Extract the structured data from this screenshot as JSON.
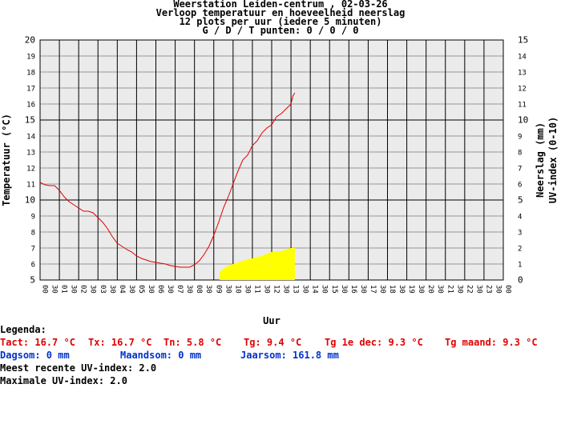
{
  "title_lines": [
    "Weerstation Leiden-centrum , 02-03-26",
    "Verloop temperatuur en hoeveelheid neerslag",
    "12 plots per uur (iedere 5 minuten)",
    "G / D / T punten: 0 / 0 / 0"
  ],
  "legend": {
    "heading": "Legenda:",
    "red_items": [
      "Tact: 16.7 °C",
      "Tx: 16.7 °C",
      "Tn: 5.8 °C",
      "Tg: 9.4 °C",
      "Tg 1e dec: 9.3 °C",
      "Tg maand: 9.3 °C"
    ],
    "blue_items": [
      "Dagsom: 0 mm",
      "Maandsom: 0 mm",
      "Jaarsom: 161.8 mm"
    ],
    "uv_recent": "Meest recente UV-index: 2.0",
    "uv_max": "Maximale UV-index: 2.0"
  },
  "chart_data": {
    "type": "line",
    "xlabel": "Uur",
    "ylabel_left": "Temperatuur (°C)",
    "ylabel_right": "Neerslag (mm) UV-index (0-10)",
    "ylim_left": [
      5,
      20
    ],
    "ylim_right": [
      0,
      15
    ],
    "xlim_hours": [
      0,
      24
    ],
    "x_tick_labels": [
      "00",
      "30",
      "01",
      "30",
      "02",
      "30",
      "03",
      "30",
      "04",
      "30",
      "05",
      "30",
      "06",
      "30",
      "07",
      "30",
      "08",
      "30",
      "09",
      "30",
      "10",
      "30",
      "11",
      "30",
      "12",
      "30",
      "13",
      "30",
      "14",
      "30",
      "15",
      "30",
      "16",
      "30",
      "17",
      "30",
      "18",
      "30",
      "19",
      "30",
      "20",
      "30",
      "21",
      "30",
      "22",
      "30",
      "23",
      "30",
      "00"
    ],
    "y_left_ticks": [
      "5",
      "6",
      "7",
      "8",
      "9",
      "10",
      "11",
      "12",
      "13",
      "14",
      "15",
      "16",
      "17",
      "18",
      "19",
      "20"
    ],
    "y_right_ticks": [
      "0",
      "1",
      "2",
      "3",
      "4",
      "5",
      "6",
      "7",
      "8",
      "9",
      "10",
      "11",
      "12",
      "13",
      "14",
      "15"
    ],
    "temperature_series": {
      "name": "Temperatuur",
      "color": "#e00000",
      "points": [
        [
          0.0,
          11.1
        ],
        [
          0.25,
          10.95
        ],
        [
          0.5,
          10.9
        ],
        [
          0.75,
          10.9
        ],
        [
          1.0,
          10.6
        ],
        [
          1.25,
          10.2
        ],
        [
          1.5,
          9.9
        ],
        [
          1.75,
          9.7
        ],
        [
          2.0,
          9.5
        ],
        [
          2.25,
          9.3
        ],
        [
          2.5,
          9.3
        ],
        [
          2.75,
          9.2
        ],
        [
          3.0,
          8.9
        ],
        [
          3.25,
          8.6
        ],
        [
          3.5,
          8.2
        ],
        [
          3.75,
          7.7
        ],
        [
          4.0,
          7.3
        ],
        [
          4.25,
          7.1
        ],
        [
          4.5,
          6.9
        ],
        [
          4.75,
          6.75
        ],
        [
          5.0,
          6.5
        ],
        [
          5.25,
          6.35
        ],
        [
          5.5,
          6.25
        ],
        [
          5.75,
          6.15
        ],
        [
          6.0,
          6.1
        ],
        [
          6.25,
          6.05
        ],
        [
          6.5,
          6.0
        ],
        [
          6.75,
          5.9
        ],
        [
          7.0,
          5.85
        ],
        [
          7.25,
          5.8
        ],
        [
          7.5,
          5.8
        ],
        [
          7.75,
          5.8
        ],
        [
          8.0,
          5.95
        ],
        [
          8.25,
          6.2
        ],
        [
          8.5,
          6.6
        ],
        [
          8.75,
          7.1
        ],
        [
          9.0,
          7.8
        ],
        [
          9.25,
          8.6
        ],
        [
          9.5,
          9.5
        ],
        [
          9.75,
          10.2
        ],
        [
          10.0,
          11.0
        ],
        [
          10.25,
          11.8
        ],
        [
          10.5,
          12.5
        ],
        [
          10.75,
          12.8
        ],
        [
          11.0,
          13.4
        ],
        [
          11.25,
          13.7
        ],
        [
          11.5,
          14.2
        ],
        [
          11.75,
          14.5
        ],
        [
          12.0,
          14.7
        ],
        [
          12.25,
          15.2
        ],
        [
          12.5,
          15.4
        ],
        [
          12.75,
          15.7
        ],
        [
          13.0,
          16.0
        ],
        [
          13.1,
          16.5
        ],
        [
          13.2,
          16.7
        ]
      ]
    },
    "uv_series": {
      "name": "UV-index",
      "color": "#ffff00",
      "points": [
        [
          9.3,
          0.5
        ],
        [
          9.5,
          0.7
        ],
        [
          9.75,
          0.9
        ],
        [
          10.0,
          1.0
        ],
        [
          10.25,
          1.1
        ],
        [
          10.5,
          1.2
        ],
        [
          10.75,
          1.3
        ],
        [
          11.0,
          1.35
        ],
        [
          11.25,
          1.45
        ],
        [
          11.5,
          1.5
        ],
        [
          11.75,
          1.65
        ],
        [
          12.0,
          1.75
        ],
        [
          12.25,
          1.8
        ],
        [
          12.5,
          1.8
        ],
        [
          12.75,
          1.9
        ],
        [
          13.0,
          2.0
        ],
        [
          13.2,
          2.0
        ]
      ]
    },
    "grid": true
  }
}
